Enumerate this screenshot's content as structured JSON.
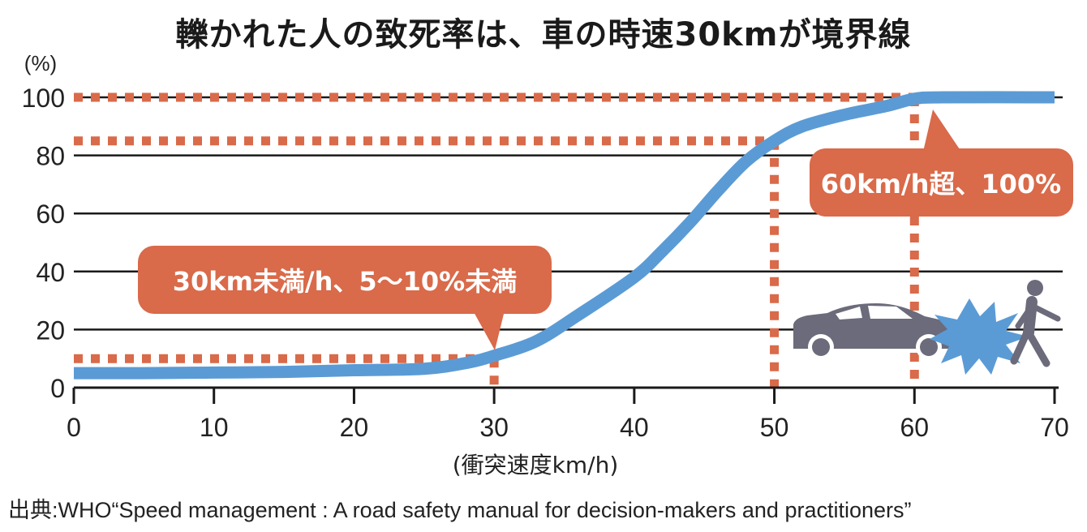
{
  "chart_data": {
    "type": "line",
    "title": "轢かれた人の致死率は、車の時速30kmが境界線",
    "ylabel": "(%)",
    "xlabel": "(衝突速度km/h)",
    "xlim": [
      0,
      70
    ],
    "ylim": [
      0,
      100
    ],
    "x_ticks": [
      "0",
      "10",
      "20",
      "30",
      "40",
      "50",
      "60",
      "70"
    ],
    "y_ticks": [
      "0",
      "20",
      "40",
      "60",
      "80",
      "100"
    ],
    "grid": "horizontal",
    "series": [
      {
        "color": "#5b9bd5",
        "points": [
          [
            0,
            5
          ],
          [
            5,
            5
          ],
          [
            10,
            5.2
          ],
          [
            15,
            5.4
          ],
          [
            20,
            6
          ],
          [
            25,
            6.5
          ],
          [
            28,
            8.5
          ],
          [
            30,
            11
          ],
          [
            33,
            16
          ],
          [
            36,
            25
          ],
          [
            40,
            38
          ],
          [
            42,
            47
          ],
          [
            44,
            57
          ],
          [
            46,
            68
          ],
          [
            48,
            78
          ],
          [
            50,
            85
          ],
          [
            52,
            90
          ],
          [
            55,
            94
          ],
          [
            58,
            97
          ],
          [
            60,
            99.5
          ],
          [
            62,
            100
          ],
          [
            70,
            100
          ]
        ]
      }
    ],
    "reference_lines": [
      {
        "x": 30,
        "y": 10
      },
      {
        "x": 50,
        "y": 85
      },
      {
        "x": 60,
        "y": 100
      }
    ],
    "annotations": [
      {
        "text": "30km未満/h、5〜10%未満",
        "points_to_x": 30,
        "points_to_y": 10
      },
      {
        "text": "60km/h超、100%",
        "points_to_x": 60,
        "points_to_y": 100
      }
    ],
    "colors": {
      "curve": "#5b9bd5",
      "reference": "#d96a4a",
      "callout": "#d96a4a",
      "grid": "#1a1a1a",
      "icon": "#6b6b7b",
      "crash": "#5b9bd5"
    },
    "icons": [
      "car-icon",
      "crash-burst-icon",
      "pedestrian-icon"
    ]
  },
  "source": "出典:WHO“Speed management : A road safety manual for decision-makers and practitioners”"
}
